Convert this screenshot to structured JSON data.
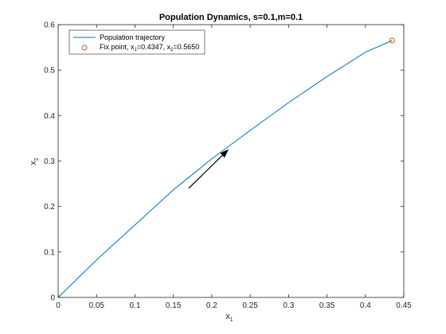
{
  "chart_data": {
    "type": "line",
    "title": "Population Dynamics, s=0.1,m=0.1",
    "xlabel": {
      "base": "x",
      "sub": "1"
    },
    "ylabel": {
      "base": "x",
      "sub": "2"
    },
    "xlim": [
      0,
      0.45
    ],
    "ylim": [
      0,
      0.6
    ],
    "xticks": [
      0,
      0.05,
      0.1,
      0.15,
      0.2,
      0.25,
      0.3,
      0.35,
      0.4,
      0.45
    ],
    "xtick_labels": [
      "0",
      "0.05",
      "0.1",
      "0.15",
      "0.2",
      "0.25",
      "0.3",
      "0.35",
      "0.4",
      "0.45"
    ],
    "yticks": [
      0,
      0.1,
      0.2,
      0.3,
      0.4,
      0.5,
      0.6
    ],
    "ytick_labels": [
      "0",
      "0.1",
      "0.2",
      "0.3",
      "0.4",
      "0.5",
      "0.6"
    ],
    "grid": false,
    "legend_position": "top-left",
    "series": [
      {
        "name": "Population trajectory",
        "color": "#0072BD",
        "x": [
          0,
          0.05,
          0.1,
          0.15,
          0.2,
          0.25,
          0.3,
          0.35,
          0.4,
          0.4347
        ],
        "y": [
          0,
          0.0825,
          0.1595,
          0.2365,
          0.3048,
          0.3674,
          0.4286,
          0.4857,
          0.5393,
          0.565
        ]
      }
    ],
    "fixed_point": {
      "name_parts": [
        "Fix point, x",
        "1",
        "=0.4347, x",
        "2",
        "=0.5650"
      ],
      "x": 0.4347,
      "y": 0.565,
      "color": "#D95319"
    },
    "arrow": {
      "from": [
        0.17,
        0.24
      ],
      "to": [
        0.222,
        0.326
      ],
      "color": "#000000"
    }
  }
}
